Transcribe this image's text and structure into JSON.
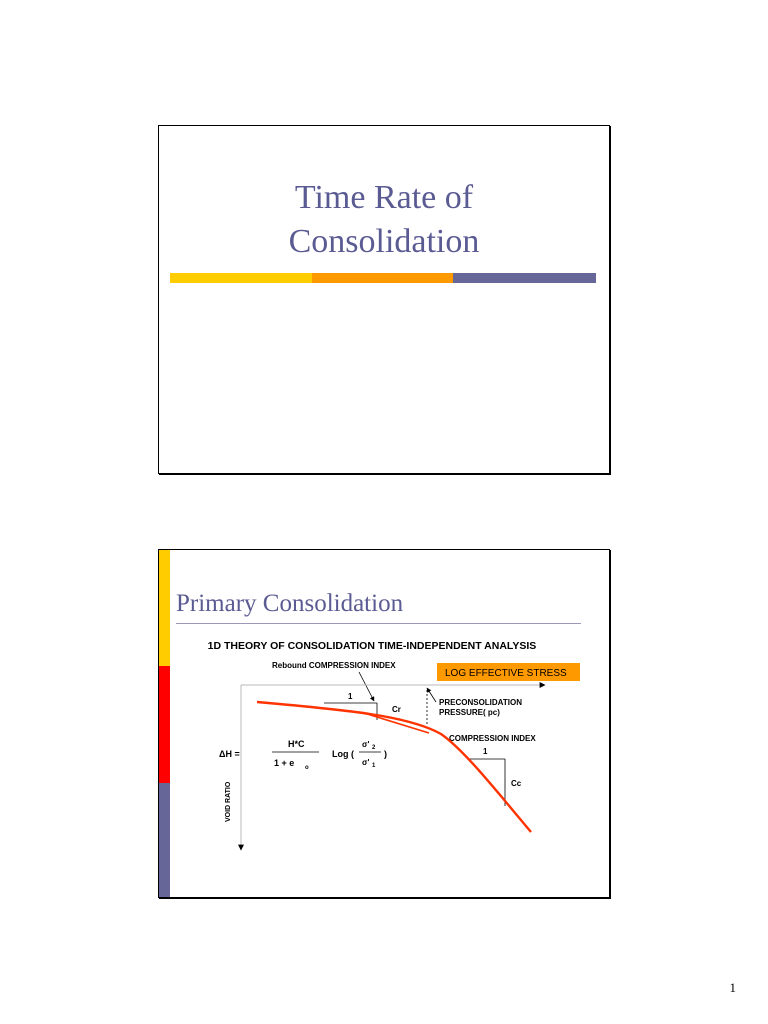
{
  "slide1": {
    "title_line1": "Time Rate of",
    "title_line2": "Consolidation",
    "bar_colors": [
      "#ffcc00",
      "#ff9900",
      "#666699"
    ]
  },
  "slide2": {
    "title": "Primary Consolidation",
    "strip_colors": [
      "#ffcc00",
      "#ff0000",
      "#666699"
    ],
    "figure": {
      "heading": "1D THEORY OF CONSOLIDATION TIME-INDEPENDENT ANALYSIS",
      "rebound_label": "Rebound COMPRESSION INDEX",
      "log_stress_label": "LOG EFFECTIVE STRESS",
      "precon_line1": "PRECONSOLIDATION",
      "precon_line2": "PRESSURE( pc)",
      "compression_index_label": "COMPRESSION INDEX",
      "slope_one_a": "1",
      "cr_label": "Cr",
      "slope_one_b": "1",
      "cc_label": "Cc",
      "void_ratio_label": "VOID RATIO",
      "formula": {
        "lhs": "ΔH =",
        "num": "H*C",
        "den": "1 + e",
        "den_sub": "o",
        "log": "Log (",
        "sig2": "σ'",
        "sig2_sub": "2",
        "close": ")",
        "sig1": "σ'",
        "sig1_sub": "1"
      },
      "curve_color": "#ff3300",
      "label_box_color": "#ff9900"
    }
  },
  "page_number": "1"
}
